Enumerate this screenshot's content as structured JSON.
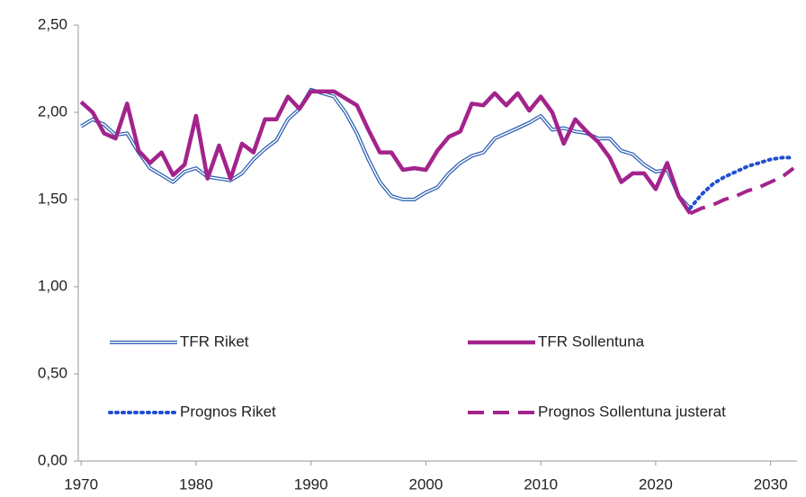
{
  "chart_data": {
    "type": "line",
    "x": [
      1970,
      1971,
      1972,
      1973,
      1974,
      1975,
      1976,
      1977,
      1978,
      1979,
      1980,
      1981,
      1982,
      1983,
      1984,
      1985,
      1986,
      1987,
      1988,
      1989,
      1990,
      1991,
      1992,
      1993,
      1994,
      1995,
      1996,
      1997,
      1998,
      1999,
      2000,
      2001,
      2002,
      2003,
      2004,
      2005,
      2006,
      2007,
      2008,
      2009,
      2010,
      2011,
      2012,
      2013,
      2014,
      2015,
      2016,
      2017,
      2018,
      2019,
      2020,
      2021,
      2022,
      2023,
      2024,
      2025,
      2026,
      2027,
      2028,
      2029,
      2030,
      2031,
      2032
    ],
    "series": [
      {
        "name": "TFR Riket",
        "color": "#2a5db0",
        "style": "double",
        "values": [
          1.92,
          1.96,
          1.93,
          1.87,
          1.88,
          1.77,
          1.68,
          1.64,
          1.6,
          1.66,
          1.68,
          1.63,
          1.62,
          1.61,
          1.65,
          1.73,
          1.79,
          1.84,
          1.96,
          2.02,
          2.13,
          2.11,
          2.09,
          2.0,
          1.88,
          1.73,
          1.6,
          1.52,
          1.5,
          1.5,
          1.54,
          1.57,
          1.65,
          1.71,
          1.75,
          1.77,
          1.85,
          1.88,
          1.91,
          1.94,
          1.98,
          1.9,
          1.91,
          1.89,
          1.88,
          1.85,
          1.85,
          1.78,
          1.76,
          1.7,
          1.66,
          1.67,
          1.52,
          1.45,
          null,
          null,
          null,
          null,
          null,
          null,
          null,
          null,
          null
        ]
      },
      {
        "name": "TFR Sollentuna",
        "color": "#a3238c",
        "style": "solid",
        "values": [
          2.06,
          2.0,
          1.88,
          1.85,
          2.05,
          1.78,
          1.71,
          1.77,
          1.64,
          1.7,
          1.98,
          1.62,
          1.81,
          1.62,
          1.82,
          1.77,
          1.96,
          1.96,
          2.09,
          2.02,
          2.12,
          2.12,
          2.12,
          2.08,
          2.04,
          1.9,
          1.77,
          1.77,
          1.67,
          1.68,
          1.67,
          1.78,
          1.86,
          1.89,
          2.05,
          2.04,
          2.11,
          2.04,
          2.11,
          2.01,
          2.09,
          2.0,
          1.82,
          1.96,
          1.89,
          1.83,
          1.74,
          1.6,
          1.65,
          1.65,
          1.56,
          1.71,
          1.52,
          1.42,
          null,
          null,
          null,
          null,
          null,
          null,
          null,
          null,
          null
        ]
      },
      {
        "name": "Prognos Riket",
        "color": "#1f4fd1",
        "style": "dotted",
        "values": [
          null,
          null,
          null,
          null,
          null,
          null,
          null,
          null,
          null,
          null,
          null,
          null,
          null,
          null,
          null,
          null,
          null,
          null,
          null,
          null,
          null,
          null,
          null,
          null,
          null,
          null,
          null,
          null,
          null,
          null,
          null,
          null,
          null,
          null,
          null,
          null,
          null,
          null,
          null,
          null,
          null,
          null,
          null,
          null,
          null,
          null,
          null,
          null,
          null,
          null,
          null,
          null,
          null,
          1.45,
          1.53,
          1.59,
          1.63,
          1.66,
          1.69,
          1.71,
          1.73,
          1.74,
          1.74
        ]
      },
      {
        "name": "Prognos Sollentuna justerat",
        "color": "#a3238c",
        "style": "dashed",
        "values": [
          null,
          null,
          null,
          null,
          null,
          null,
          null,
          null,
          null,
          null,
          null,
          null,
          null,
          null,
          null,
          null,
          null,
          null,
          null,
          null,
          null,
          null,
          null,
          null,
          null,
          null,
          null,
          null,
          null,
          null,
          null,
          null,
          null,
          null,
          null,
          null,
          null,
          null,
          null,
          null,
          null,
          null,
          null,
          null,
          null,
          null,
          null,
          null,
          null,
          null,
          null,
          null,
          null,
          1.42,
          1.45,
          1.47,
          1.5,
          1.52,
          1.55,
          1.57,
          1.6,
          1.63,
          1.68
        ]
      }
    ],
    "xlim": [
      1969.75,
      2032.3
    ],
    "xticks": [
      1970,
      1980,
      1990,
      2000,
      2010,
      2020,
      2030
    ],
    "ylim": [
      0,
      2.5
    ],
    "yticks": [
      {
        "value": 0,
        "label": "0,00"
      },
      {
        "value": 0.5,
        "label": "0,50"
      },
      {
        "value": 1,
        "label": "1,00"
      },
      {
        "value": 1.5,
        "label": "1,50"
      },
      {
        "value": 2,
        "label": "2,00"
      },
      {
        "value": 2.5,
        "label": "2,50"
      }
    ],
    "legend": "inside-bottom"
  }
}
